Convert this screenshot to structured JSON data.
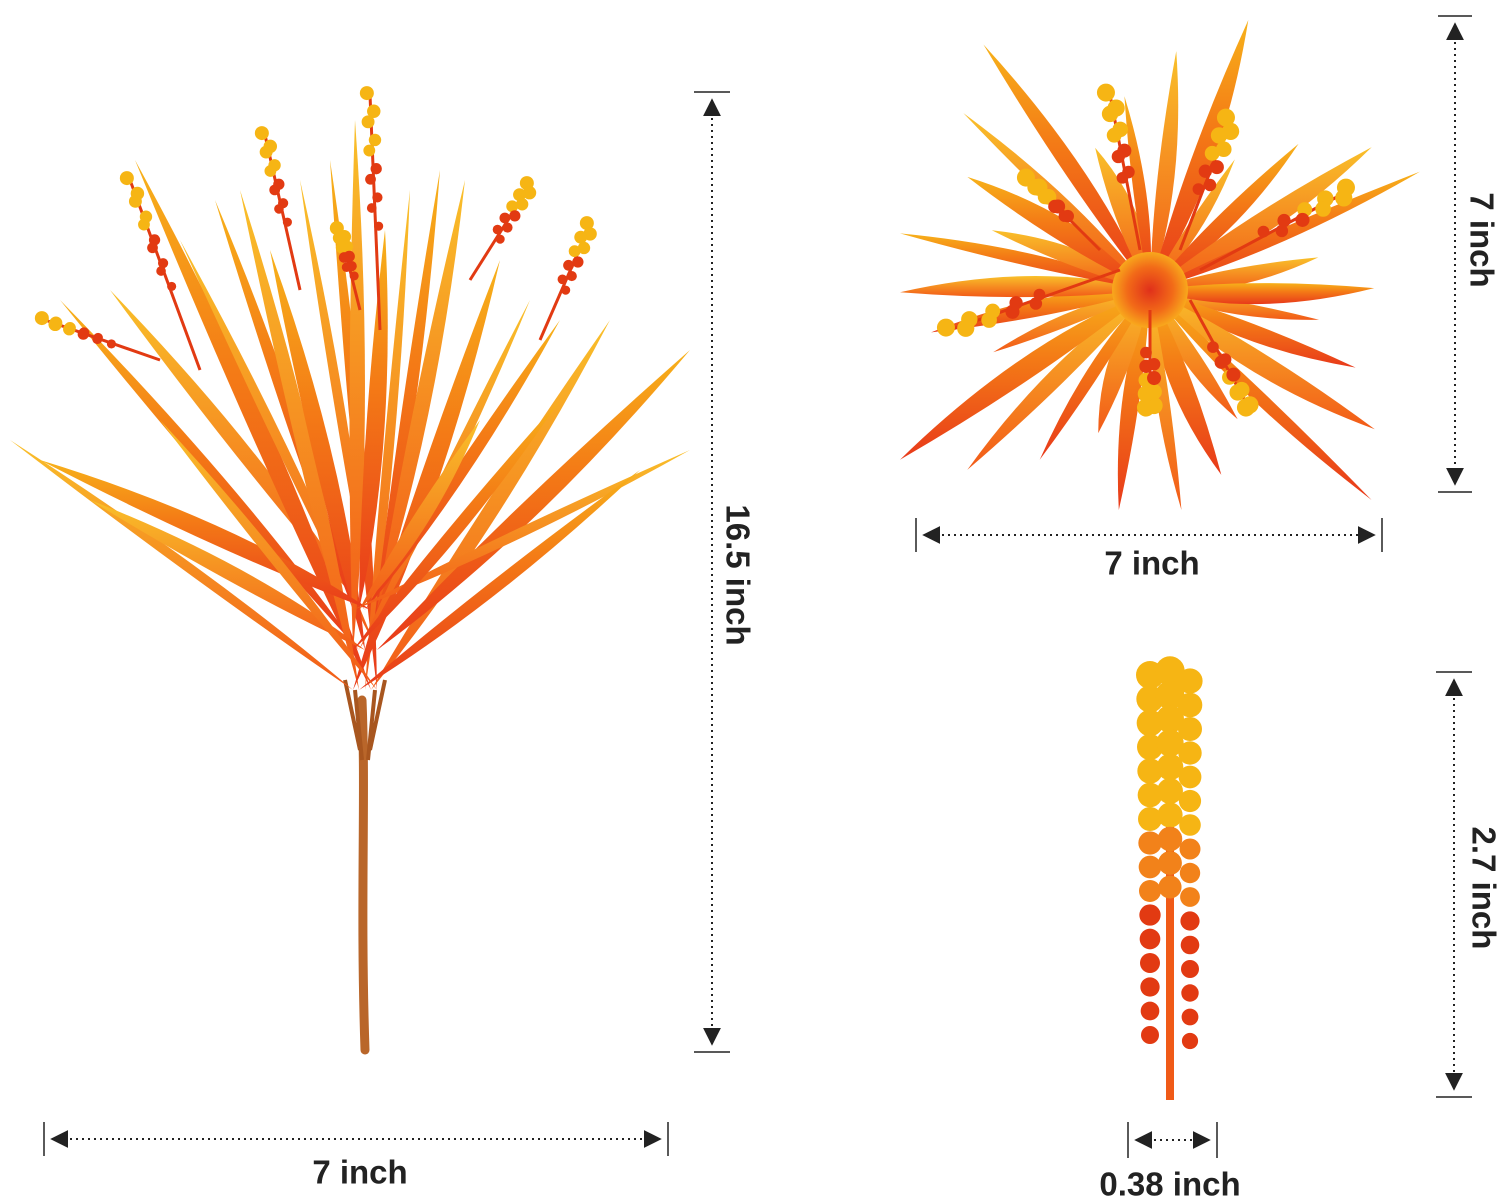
{
  "product": {
    "bouquet": {
      "height_label": "16.5 inch",
      "width_label": "7 inch"
    },
    "top_view": {
      "height_label": "7 inch",
      "width_label": "7 inch"
    },
    "flower_spike": {
      "height_label": "2.7 inch",
      "width_label": "0.38 inch"
    }
  },
  "colors": {
    "leaf_red": "#e8391a",
    "leaf_orange": "#f47b16",
    "leaf_yellow": "#f7b21a",
    "bud_yellow": "#f6b514",
    "bud_red": "#e23a12",
    "stem_brown": "#b9662a",
    "dimension_line": "#222222",
    "text": "#222222"
  },
  "icons": [
    "dimension-arrow-icon",
    "bouquet-image",
    "top-view-image",
    "flower-spike-image"
  ]
}
